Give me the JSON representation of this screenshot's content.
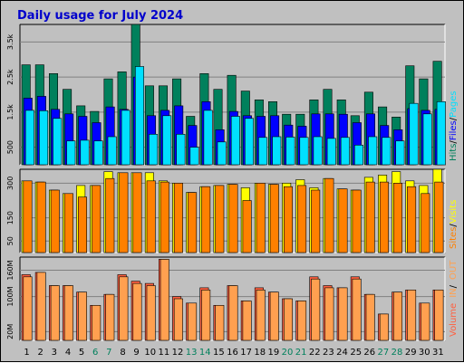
{
  "chart_data": {
    "type": "bar",
    "title": "Daily usage for July 2024",
    "categories": [
      "1",
      "2",
      "3",
      "4",
      "5",
      "6",
      "7",
      "8",
      "9",
      "10",
      "11",
      "12",
      "13",
      "14",
      "15",
      "16",
      "17",
      "18",
      "19",
      "20",
      "21",
      "22",
      "23",
      "24",
      "25",
      "26",
      "27",
      "28",
      "29",
      "30",
      "31"
    ],
    "weekend_days": [
      "6",
      "7",
      "13",
      "14",
      "20",
      "21",
      "27",
      "28"
    ],
    "colors": {
      "hits": "#00805c",
      "files": "#0000ff",
      "pages": "#00e0ff",
      "visits": "#ffff00",
      "sites": "#ff8000",
      "kbytes_in": "#ff6040",
      "kbytes_out": "#ffa050",
      "weekday_label": "#000000",
      "weekend_label": "#00805c",
      "title": "#0000cc"
    },
    "panels": [
      {
        "name": "hits-panel",
        "ylim": [
          0,
          4000
        ],
        "yticks": [
          {
            "label": "3.5k",
            "value": 3500
          },
          {
            "label": "2.5k",
            "value": 2500
          },
          {
            "label": "1.5k",
            "value": 1500
          },
          {
            "label": "500",
            "value": 500
          }
        ],
        "legend": [
          {
            "text": "Hits",
            "key": "hits"
          },
          {
            "text": "/",
            "key": "sep"
          },
          {
            "text": "Files",
            "key": "files"
          },
          {
            "text": "/",
            "key": "sep"
          },
          {
            "text": "Pages",
            "key": "pages"
          }
        ],
        "series": [
          {
            "name": "Hits",
            "key": "hits",
            "values": [
              2850,
              2850,
              2600,
              2150,
              1680,
              1520,
              2450,
              2650,
              4000,
              2250,
              2250,
              2450,
              1380,
              2600,
              2150,
              2550,
              2100,
              1850,
              1800,
              1440,
              1440,
              1850,
              2150,
              1850,
              1400,
              2070,
              1650,
              1360,
              2820,
              2450,
              2950
            ]
          },
          {
            "name": "Files",
            "key": "files",
            "values": [
              1900,
              1950,
              1580,
              1450,
              1380,
              1200,
              1650,
              1580,
              2500,
              1400,
              1550,
              1680,
              1120,
              1800,
              1000,
              1520,
              1400,
              1380,
              1400,
              1130,
              1100,
              1450,
              1450,
              1440,
              1200,
              1450,
              1120,
              1000,
              1600,
              1550,
              1580
            ]
          },
          {
            "name": "Pages",
            "key": "pages",
            "values": [
              1550,
              1540,
              1320,
              680,
              700,
              680,
              800,
              1550,
              2800,
              870,
              1400,
              870,
              500,
              1550,
              650,
              1380,
              1320,
              780,
              800,
              790,
              780,
              800,
              750,
              780,
              560,
              800,
              780,
              680,
              1750,
              1450,
              1800
            ]
          }
        ]
      },
      {
        "name": "visits-panel",
        "ylim": [
          0,
          360
        ],
        "yticks": [
          {
            "label": "300",
            "value": 300
          },
          {
            "label": "150",
            "value": 150
          },
          {
            "label": "50",
            "value": 50
          }
        ],
        "legend": [
          {
            "text": "Sites",
            "key": "sites"
          },
          {
            "text": "/",
            "key": "sep"
          },
          {
            "text": "Visits",
            "key": "visits"
          }
        ],
        "series": [
          {
            "name": "Visits",
            "key": "visits",
            "values": [
              310,
              305,
              270,
              255,
              290,
              290,
              350,
              345,
              345,
              345,
              310,
              300,
              260,
              285,
              290,
              295,
              280,
              300,
              295,
              300,
              315,
              280,
              320,
              275,
              270,
              325,
              335,
              350,
              310,
              290,
              360
            ]
          },
          {
            "name": "Sites",
            "key": "sites",
            "values": [
              310,
              305,
              270,
              255,
              240,
              290,
              320,
              345,
              345,
              310,
              305,
              300,
              260,
              285,
              290,
              295,
              225,
              300,
              295,
              285,
              290,
              270,
              320,
              275,
              270,
              305,
              305,
              300,
              285,
              255,
              305
            ]
          }
        ]
      },
      {
        "name": "kbytes-panel",
        "ylim": [
          0,
          190
        ],
        "yticks": [
          {
            "label": "160M",
            "value": 160
          },
          {
            "label": "100M",
            "value": 100
          },
          {
            "label": "20M",
            "value": 20
          }
        ],
        "legend": [
          {
            "text": "Volume",
            "key": "kbytes_in"
          },
          {
            "text": "IN",
            "key": "kbytes_out"
          },
          {
            "text": "/",
            "key": "sep"
          },
          {
            "text": "OUT",
            "key": "kbytes_out"
          }
        ],
        "series": [
          {
            "name": "Volume",
            "key": "kbytes_in",
            "values": [
              150,
              155,
              125,
              125,
              110,
              80,
              105,
              150,
              135,
              130,
              185,
              100,
              85,
              120,
              80,
              125,
              90,
              120,
              110,
              95,
              90,
              145,
              125,
              120,
              145,
              105,
              60,
              110,
              115,
              85,
              115
            ]
          },
          {
            "name": "Out",
            "key": "kbytes_out",
            "values": [
              145,
              155,
              125,
              125,
              110,
              80,
              105,
              145,
              130,
              125,
              185,
              95,
              85,
              115,
              80,
              125,
              90,
              115,
              110,
              95,
              90,
              140,
              120,
              120,
              140,
              105,
              60,
              110,
              115,
              85,
              115
            ]
          }
        ]
      }
    ]
  }
}
